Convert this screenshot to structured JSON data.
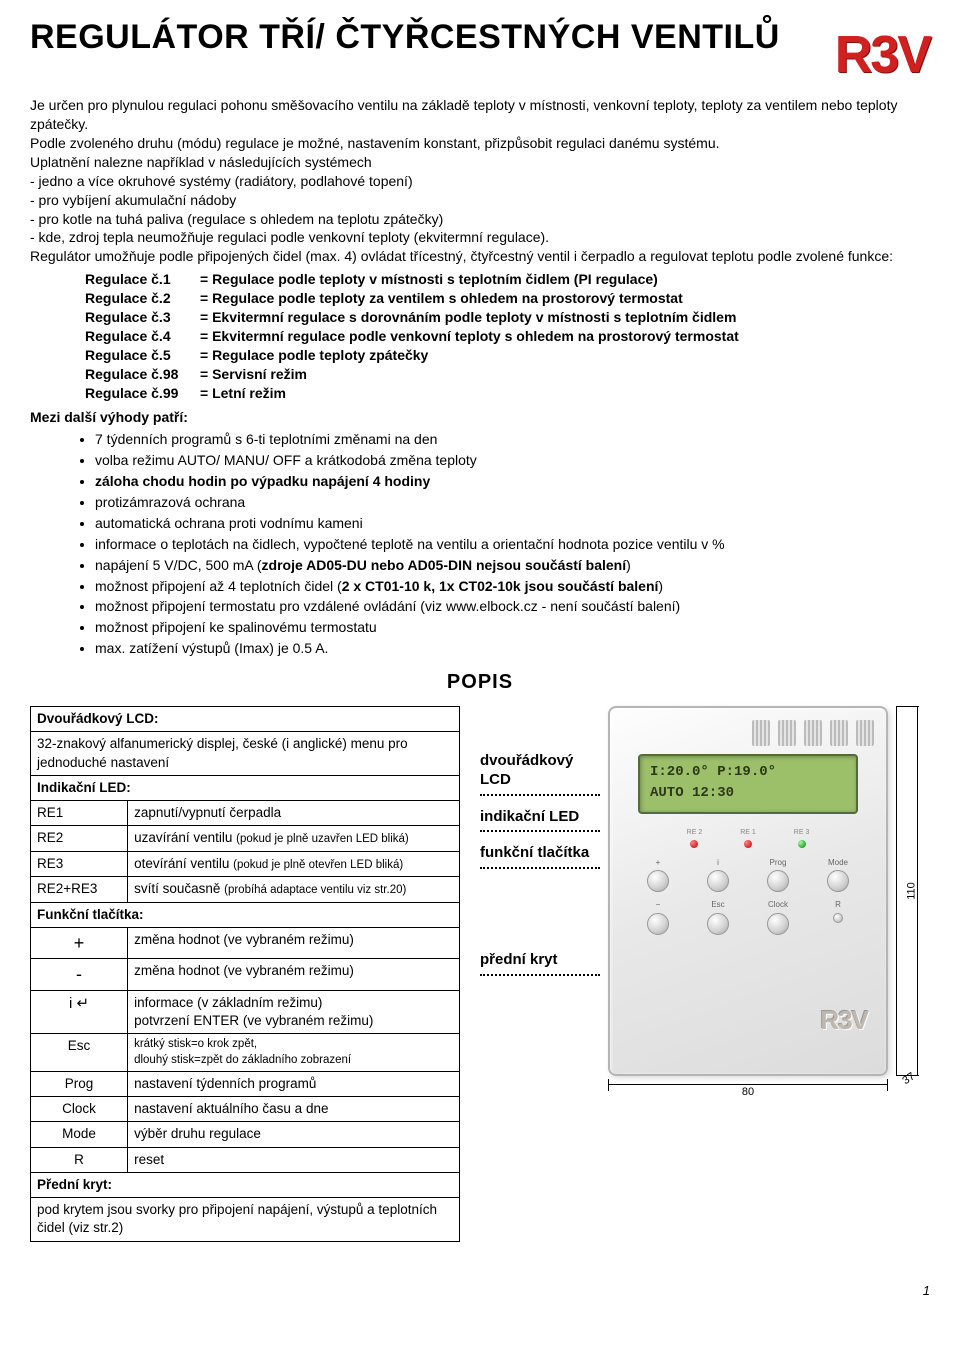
{
  "title": "REGULÁTOR TŘÍ/ ČTYŘCESTNÝCH VENTILŮ",
  "logo": "R3V",
  "intro_p1": "Je určen pro plynulou regulaci pohonu směšovacího ventilu na základě teploty v místnosti, venkovní teploty, teploty za ventilem nebo teploty zpátečky.",
  "intro_p2": "Podle zvoleného druhu (módu) regulace je možné, nastavením konstant, přizpůsobit regulaci danému systému.",
  "intro_p3": "Uplatnění nalezne například v následujících systémech",
  "intro_b1": "- jedno a více okruhové systémy (radiátory, podlahové topení)",
  "intro_b2": "- pro vybíjení akumulační nádoby",
  "intro_b3": "- pro kotle na tuhá paliva (regulace s ohledem na teplotu zpátečky)",
  "intro_b4": "- kde, zdroj tepla neumožňuje regulaci podle venkovní teploty (ekvitermní regulace).",
  "intro_p4": "Regulátor umožňuje podle připojených čidel (max. 4) ovládat třícestný, čtyřcestný ventil i čerpadlo a regulovat teplotu podle zvolené funkce:",
  "reg": [
    {
      "label": "Regulace č.1",
      "desc": "= Regulace podle teploty v místnosti s teplotním čidlem (PI regulace)"
    },
    {
      "label": "Regulace č.2",
      "desc": "= Regulace podle teploty za ventilem s ohledem na prostorový termostat"
    },
    {
      "label": "Regulace č.3",
      "desc": "= Ekvitermní regulace s dorovnáním podle teploty v místnosti s teplotním čidlem"
    },
    {
      "label": "Regulace č.4",
      "desc": "= Ekvitermní regulace podle venkovní teploty s ohledem na prostorový termostat"
    },
    {
      "label": "Regulace č.5",
      "desc": "= Regulace podle teploty zpátečky"
    },
    {
      "label": "Regulace č.98",
      "desc": "= Servisní režim"
    },
    {
      "label": "Regulace č.99",
      "desc": "= Letní režim"
    }
  ],
  "adv_head": "Mezi další výhody patří:",
  "adv": [
    "7 týdenních programů s 6-ti teplotními změnami na den",
    "volba režimu AUTO/ MANU/ OFF  a krátkodobá změna teploty",
    "záloha chodu hodin po výpadku napájení 4 hodiny",
    "protizámrazová ochrana",
    "automatická ochrana proti vodnímu kameni",
    "informace o teplotách na čidlech, vypočtené teplotě na ventilu a orientační hodnota pozice ventilu v %",
    "napájení 5 V/DC, 500 mA (zdroje AD05-DU nebo AD05-DIN nejsou součástí balení)",
    "možnost připojení až 4 teplotních čidel (2 x CT01-10 k, 1x CT02-10k jsou součástí balení)",
    "možnost připojení termostatu pro vzdálené ovládání (viz www.elbock.cz - není součástí balení)",
    "možnost připojení ke spalinovému termostatu",
    "max. zatížení výstupů (Imax) je 0.5 A."
  ],
  "adv_bold": [
    false,
    false,
    true,
    false,
    false,
    false,
    false,
    false,
    false,
    false,
    false
  ],
  "adv_partial_bold": {
    "6": "zdroje AD05-DU nebo AD05-DIN nejsou součástí balení",
    "7": "2 x CT01-10 k, 1x CT02-10k jsou součástí balení"
  },
  "popis_title": "POPIS",
  "table": {
    "lcd_head": "Dvouřádkový LCD:",
    "lcd_desc": "32-znakový alfanumerický displej, české (i anglické) menu pro jednoduché nastavení",
    "led_head": "Indikační LED:",
    "led_rows": [
      {
        "k": "RE1",
        "v": "zapnutí/vypnutí čerpadla"
      },
      {
        "k": "RE2",
        "v": "uzavírání ventilu ",
        "s": "(pokud je plně uzavřen LED bliká)"
      },
      {
        "k": "RE3",
        "v": "otevírání ventilu ",
        "s": "(pokud je plně otevřen LED bliká)"
      },
      {
        "k": "RE2+RE3",
        "v": "svítí současně ",
        "s": "(probíhá adaptace ventilu viz str.20)"
      }
    ],
    "btn_head": "Funkční tlačítka:",
    "btn_rows": [
      {
        "k": "+",
        "v": "změna hodnot (ve vybraném režimu)"
      },
      {
        "k": "-",
        "v": "změna hodnot (ve vybraném režimu)"
      },
      {
        "k": "i ↵",
        "v": "informace (v základním režimu)\npotvrzení ENTER (ve vybraném režimu)"
      },
      {
        "k": "Esc",
        "v": "krátký stisk=o krok zpět,\ndlouhý stisk=zpět do základního zobrazení",
        "small": true
      },
      {
        "k": "Prog",
        "v": "nastavení týdenních programů"
      },
      {
        "k": "Clock",
        "v": "nastavení aktuálního času a dne"
      },
      {
        "k": "Mode",
        "v": "výběr druhu regulace"
      },
      {
        "k": "R",
        "v": "reset"
      }
    ],
    "cover_head": "Přední kryt:",
    "cover_desc": "pod krytem jsou svorky pro připojení napájení, výstupů a teplotních čidel (viz str.2)"
  },
  "device_labels": {
    "lcd": "dvouřádkový LCD",
    "led": "indikační LED",
    "btns": "funkční tlačítka",
    "cover": "přední kryt"
  },
  "lcd_text": {
    "l1": "I:20.0° P:19.0°",
    "l2": "AUTO   12:30"
  },
  "led_names": [
    "RE 2",
    "RE 1",
    "RE 3"
  ],
  "btn_labels_row1": [
    "+",
    "i",
    "Prog",
    "Mode"
  ],
  "btn_labels_row2": [
    "−",
    "Esc",
    "Clock",
    "R"
  ],
  "device_logo": "R3V",
  "dims": {
    "w": "80",
    "h": "110",
    "d": "37"
  },
  "page_num": "1",
  "colors": {
    "accent": "#d02020",
    "lcd_bg": "#9cbf6a"
  }
}
